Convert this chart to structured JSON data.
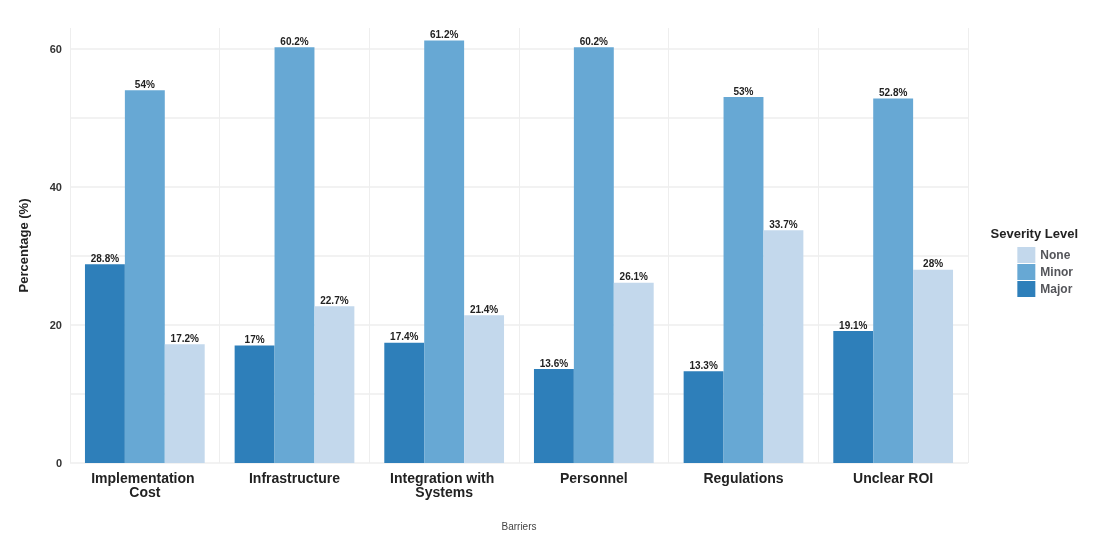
{
  "chart_data": {
    "type": "bar",
    "xlabel": "Barriers",
    "ylabel": "Percentage (%)",
    "legend_title": "Severity Level",
    "categories": [
      "Implementation Cost",
      "Infrastructure",
      "Integration with Systems",
      "Personnel",
      "Regulations",
      "Unclear ROI"
    ],
    "series": [
      {
        "name": "Major",
        "color": "#2e7fba",
        "values": [
          28.8,
          17,
          17.4,
          13.6,
          13.3,
          19.1
        ],
        "value_labels": [
          "28.8%",
          "17%",
          "17.4%",
          "13.6%",
          "13.3%",
          "19.1%"
        ]
      },
      {
        "name": "Minor",
        "color": "#67a8d4",
        "values": [
          54,
          60.2,
          61.2,
          60.2,
          53,
          52.8
        ],
        "value_labels": [
          "54%",
          "60.2%",
          "61.2%",
          "60.2%",
          "53%",
          "52.8%"
        ]
      },
      {
        "name": "None",
        "color": "#c3d8ec",
        "values": [
          17.2,
          22.7,
          21.4,
          26.1,
          33.7,
          28
        ],
        "value_labels": [
          "17.2%",
          "22.7%",
          "21.4%",
          "26.1%",
          "33.7%",
          "28%"
        ]
      }
    ],
    "ylim": [
      0,
      63
    ],
    "yticks": [
      0,
      {
        "value": 10,
        "label": null
      },
      20,
      {
        "value": 30,
        "label": null
      },
      40,
      {
        "value": 50,
        "label": null
      },
      60
    ],
    "grid": true,
    "legend": "right"
  }
}
